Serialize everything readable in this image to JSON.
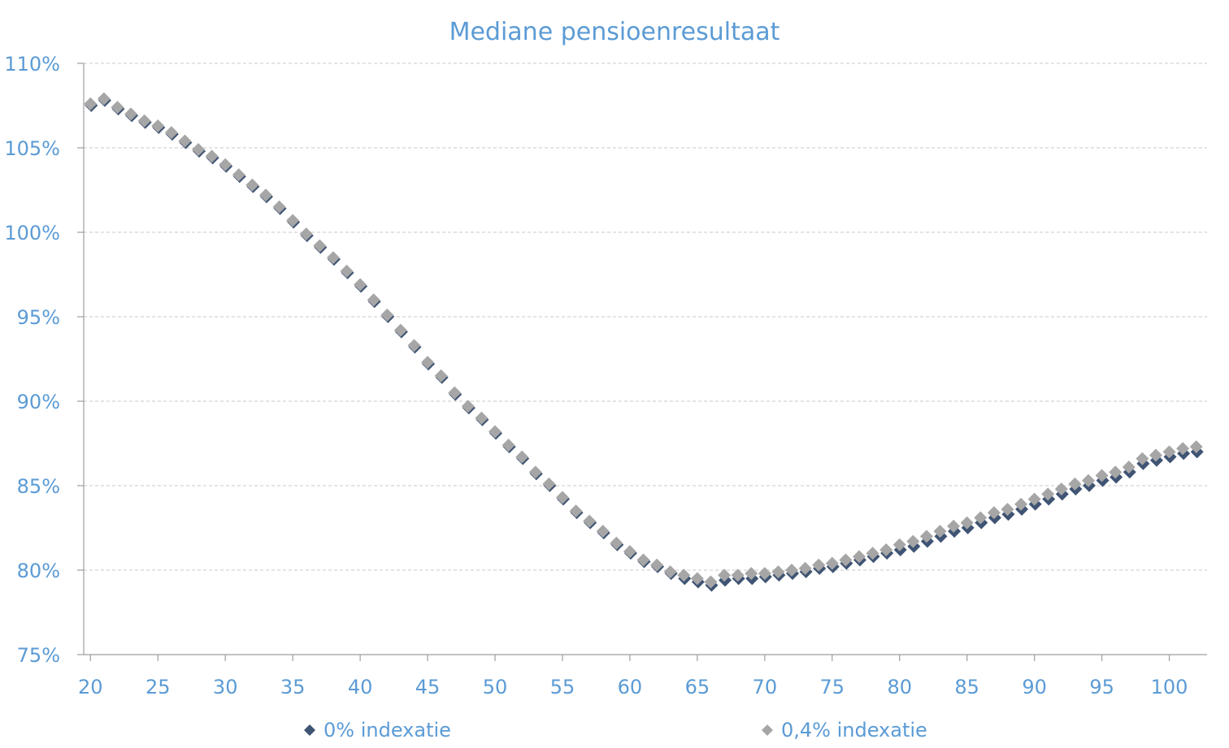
{
  "chart_data": {
    "type": "scatter",
    "title": "Mediane pensioenresultaat",
    "xlabel": "",
    "ylabel": "",
    "xlim": [
      19.5,
      102.8
    ],
    "ylim": [
      75,
      110
    ],
    "x_ticks": [
      20,
      25,
      30,
      35,
      40,
      45,
      50,
      55,
      60,
      65,
      70,
      75,
      80,
      85,
      90,
      95,
      100
    ],
    "x_tick_labels": [
      "20",
      "25",
      "30",
      "35",
      "40",
      "45",
      "50",
      "55",
      "60",
      "65",
      "70",
      "75",
      "80",
      "85",
      "90",
      "95",
      "100"
    ],
    "y_ticks": [
      75,
      80,
      85,
      90,
      95,
      100,
      105,
      110
    ],
    "y_tick_labels": [
      "75%",
      "80%",
      "85%",
      "90%",
      "95%",
      "100%",
      "105%",
      "110%"
    ],
    "grid": true,
    "legend_position": "bottom",
    "series": [
      {
        "name": "0% indexatie",
        "color": "#3f5474",
        "marker": "diamond",
        "x": [
          20,
          21,
          22,
          23,
          24,
          25,
          26,
          27,
          28,
          29,
          30,
          31,
          32,
          33,
          34,
          35,
          36,
          37,
          38,
          39,
          40,
          41,
          42,
          43,
          44,
          45,
          46,
          47,
          48,
          49,
          50,
          51,
          52,
          53,
          54,
          55,
          56,
          57,
          58,
          59,
          60,
          61,
          62,
          63,
          64,
          65,
          66,
          67,
          68,
          69,
          70,
          71,
          72,
          73,
          74,
          75,
          76,
          77,
          78,
          79,
          80,
          81,
          82,
          83,
          84,
          85,
          86,
          87,
          88,
          89,
          90,
          91,
          92,
          93,
          94,
          95,
          96,
          97,
          98,
          99,
          100,
          101,
          102
        ],
        "y": [
          107.6,
          107.9,
          107.4,
          107.0,
          106.6,
          106.3,
          105.9,
          105.4,
          104.9,
          104.5,
          104.0,
          103.4,
          102.8,
          102.2,
          101.5,
          100.7,
          99.9,
          99.2,
          98.5,
          97.7,
          96.9,
          96.0,
          95.1,
          94.2,
          93.3,
          92.3,
          91.5,
          90.5,
          89.7,
          89.0,
          88.2,
          87.4,
          86.7,
          85.8,
          85.1,
          84.3,
          83.5,
          82.9,
          82.3,
          81.6,
          81.1,
          80.6,
          80.3,
          79.9,
          79.6,
          79.4,
          79.2,
          79.5,
          79.6,
          79.6,
          79.7,
          79.8,
          79.9,
          80.0,
          80.2,
          80.3,
          80.5,
          80.7,
          80.9,
          81.1,
          81.3,
          81.5,
          81.8,
          82.1,
          82.4,
          82.6,
          82.9,
          83.2,
          83.4,
          83.7,
          84.0,
          84.3,
          84.6,
          84.9,
          85.1,
          85.4,
          85.6,
          85.9,
          86.4,
          86.6,
          86.8,
          87.0,
          87.1
        ]
      },
      {
        "name": "0,4% indexatie",
        "color": "#a6a6a6",
        "marker": "diamond",
        "x": [
          20,
          21,
          22,
          23,
          24,
          25,
          26,
          27,
          28,
          29,
          30,
          31,
          32,
          33,
          34,
          35,
          36,
          37,
          38,
          39,
          40,
          41,
          42,
          43,
          44,
          45,
          46,
          47,
          48,
          49,
          50,
          51,
          52,
          53,
          54,
          55,
          56,
          57,
          58,
          59,
          60,
          61,
          62,
          63,
          64,
          65,
          66,
          67,
          68,
          69,
          70,
          71,
          72,
          73,
          74,
          75,
          76,
          77,
          78,
          79,
          80,
          81,
          82,
          83,
          84,
          85,
          86,
          87,
          88,
          89,
          90,
          91,
          92,
          93,
          94,
          95,
          96,
          97,
          98,
          99,
          100,
          101,
          102
        ],
        "y": [
          107.6,
          107.9,
          107.4,
          107.0,
          106.6,
          106.3,
          105.9,
          105.4,
          104.9,
          104.5,
          104.0,
          103.4,
          102.8,
          102.2,
          101.5,
          100.7,
          99.9,
          99.2,
          98.5,
          97.7,
          96.9,
          96.0,
          95.1,
          94.2,
          93.3,
          92.3,
          91.5,
          90.5,
          89.7,
          89.0,
          88.2,
          87.4,
          86.7,
          85.8,
          85.1,
          84.3,
          83.5,
          82.9,
          82.3,
          81.6,
          81.1,
          80.6,
          80.3,
          79.9,
          79.7,
          79.5,
          79.3,
          79.7,
          79.7,
          79.8,
          79.8,
          79.9,
          80.0,
          80.1,
          80.3,
          80.4,
          80.6,
          80.8,
          81.0,
          81.2,
          81.5,
          81.7,
          82.0,
          82.3,
          82.6,
          82.8,
          83.1,
          83.4,
          83.6,
          83.9,
          84.2,
          84.5,
          84.8,
          85.1,
          85.3,
          85.6,
          85.8,
          86.1,
          86.6,
          86.8,
          87.0,
          87.2,
          87.3
        ]
      }
    ]
  }
}
